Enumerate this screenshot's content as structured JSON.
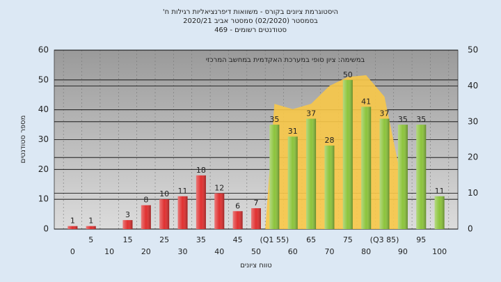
{
  "chart_data": {
    "type": "bar",
    "title": "היסטוגרמת ציונים בקורס - משוואות דיפרנציאליות רגילות ח'",
    "subtitle": "בסמסטר (02/2020) סמסטר אביב 2020/21",
    "subtitle2": "סטודנטים רשומים - 469",
    "annotation": "במשימה: ציון סופי במערכת האקדמית במחשב המרכזי",
    "x_label": "טווח ציונים",
    "y_label": "מספר סטודנטים",
    "categories": [
      "0",
      "5",
      "10",
      "15",
      "20",
      "25",
      "30",
      "35",
      "40",
      "45",
      "50",
      "(Q1 55)",
      "60",
      "65",
      "70",
      "75",
      "80",
      "(Q3 85)",
      "90",
      "95",
      "100"
    ],
    "values": [
      1,
      1,
      0,
      3,
      8,
      10,
      11,
      18,
      12,
      6,
      7,
      35,
      31,
      37,
      28,
      50,
      41,
      37,
      35,
      35,
      11
    ],
    "colors": [
      "#e03030",
      "#e03030",
      "#e03030",
      "#e03030",
      "#e03030",
      "#e03030",
      "#e03030",
      "#e03030",
      "#e03030",
      "#e03030",
      "#e03030",
      "#8cc43c",
      "#8cc43c",
      "#8cc43c",
      "#8cc43c",
      "#8cc43c",
      "#8cc43c",
      "#8cc43c",
      "#8cc43c",
      "#8cc43c",
      "#8cc43c"
    ],
    "area": {
      "axis": "y2",
      "color": "#f8c848",
      "values": [
        null,
        null,
        null,
        null,
        null,
        null,
        null,
        null,
        null,
        null,
        null,
        35,
        33.5,
        35,
        40,
        42.5,
        43,
        37,
        12,
        null,
        null
      ]
    },
    "ylim": [
      0,
      60
    ],
    "yticks": [
      0,
      10,
      20,
      30,
      40,
      50,
      60
    ],
    "y2lim": [
      0,
      50
    ],
    "y2ticks": [
      0,
      10,
      20,
      30,
      40,
      50
    ],
    "grid": true
  }
}
